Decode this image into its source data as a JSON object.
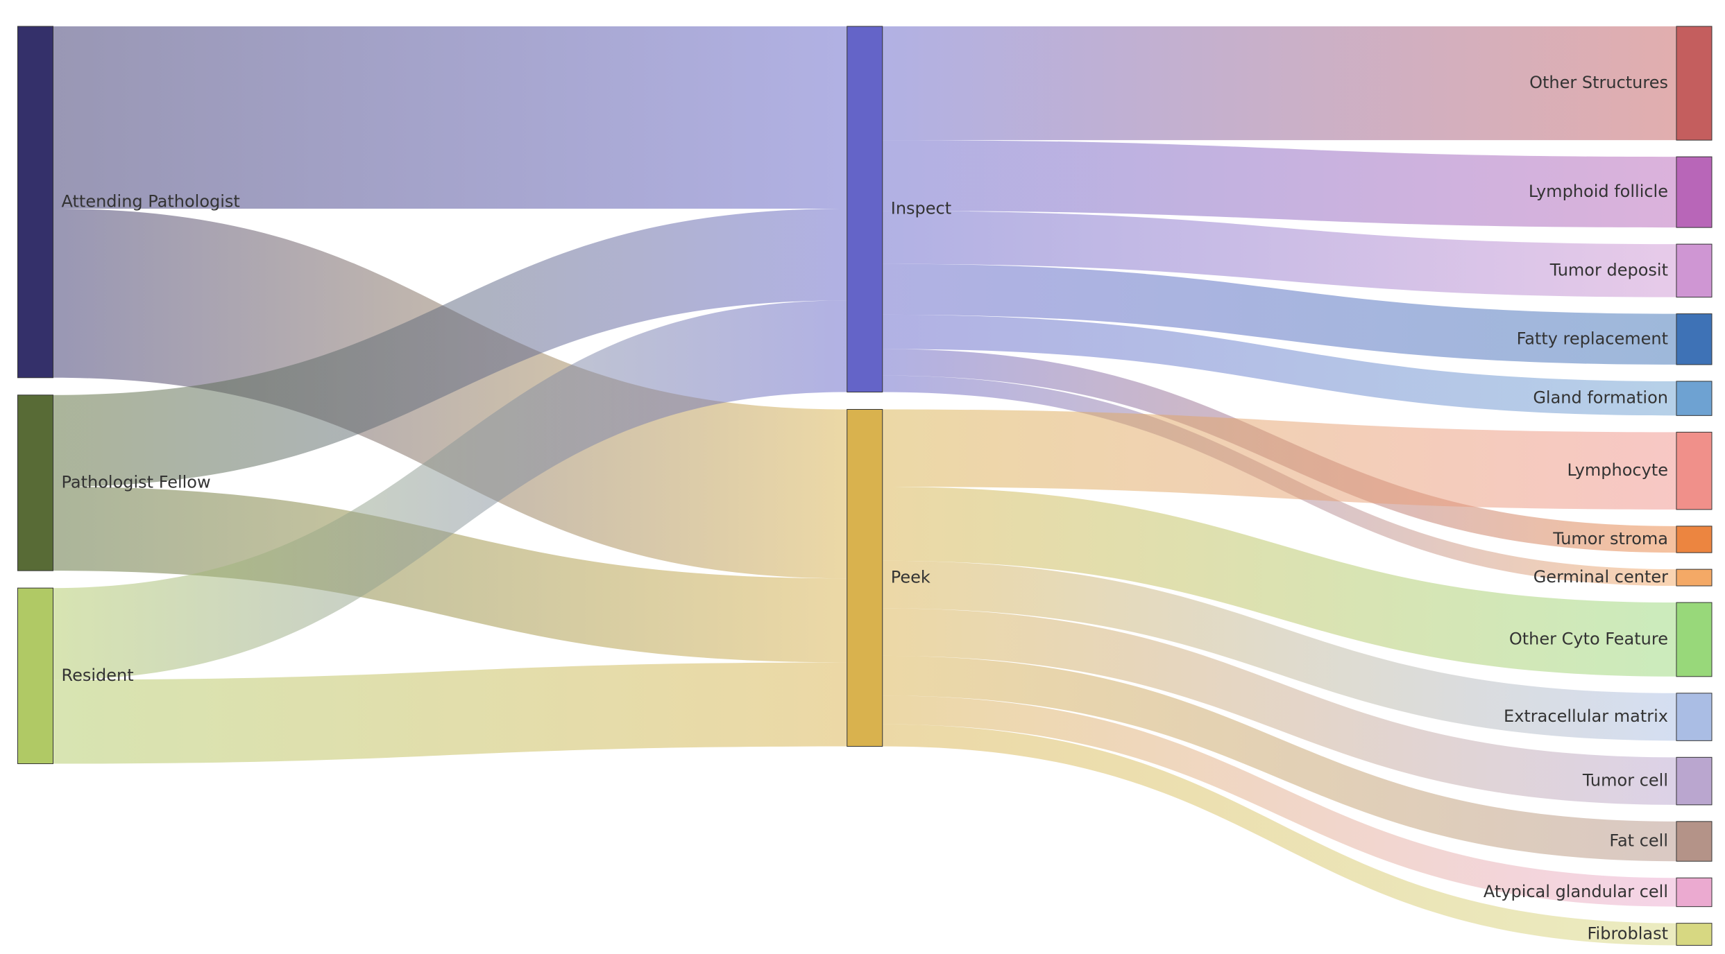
{
  "chart_data": {
    "type": "sankey",
    "nodes": [
      {
        "name": "Attending Pathologist",
        "color": "#34306a"
      },
      {
        "name": "Pathologist Fellow",
        "color": "#586b36"
      },
      {
        "name": "Resident",
        "color": "#b0c965"
      },
      {
        "name": "Inspect",
        "color": "#6464c8"
      },
      {
        "name": "Peek",
        "color": "#d9b24e"
      },
      {
        "name": "Other Structures",
        "color": "#c45e5e"
      },
      {
        "name": "Lymphoid follicle",
        "color": "#b866b8"
      },
      {
        "name": "Tumor deposit",
        "color": "#cf96d3"
      },
      {
        "name": "Fatty replacement",
        "color": "#3e72b6"
      },
      {
        "name": "Gland formation",
        "color": "#6ea2d2"
      },
      {
        "name": "Lymphocyte",
        "color": "#f0908a"
      },
      {
        "name": "Tumor stroma",
        "color": "#ec8540"
      },
      {
        "name": "Germinal center",
        "color": "#f4a966"
      },
      {
        "name": "Other Cyto Feature",
        "color": "#98d87a"
      },
      {
        "name": "Extracellular matrix",
        "color": "#aabde4"
      },
      {
        "name": "Tumor cell",
        "color": "#baa6cf"
      },
      {
        "name": "Fat cell",
        "color": "#b49388"
      },
      {
        "name": "Atypical glandular cell",
        "color": "#ebaad0"
      },
      {
        "name": "Fibroblast",
        "color": "#d7d882"
      }
    ],
    "links": [
      {
        "source": "Attending Pathologist",
        "target": "Inspect",
        "value": 165
      },
      {
        "source": "Attending Pathologist",
        "target": "Peek",
        "value": 153
      },
      {
        "source": "Pathologist Fellow",
        "target": "Inspect",
        "value": 83
      },
      {
        "source": "Pathologist Fellow",
        "target": "Peek",
        "value": 76
      },
      {
        "source": "Resident",
        "target": "Inspect",
        "value": 83
      },
      {
        "source": "Resident",
        "target": "Peek",
        "value": 76
      },
      {
        "source": "Inspect",
        "target": "Other Structures",
        "value": 103
      },
      {
        "source": "Inspect",
        "target": "Lymphoid follicle",
        "value": 64
      },
      {
        "source": "Inspect",
        "target": "Tumor deposit",
        "value": 48
      },
      {
        "source": "Inspect",
        "target": "Fatty replacement",
        "value": 46
      },
      {
        "source": "Inspect",
        "target": "Gland formation",
        "value": 31
      },
      {
        "source": "Inspect",
        "target": "Tumor stroma",
        "value": 24
      },
      {
        "source": "Inspect",
        "target": "Germinal center",
        "value": 15
      },
      {
        "source": "Peek",
        "target": "Lymphocyte",
        "value": 70
      },
      {
        "source": "Peek",
        "target": "Other Cyto Feature",
        "value": 67
      },
      {
        "source": "Peek",
        "target": "Extracellular matrix",
        "value": 43
      },
      {
        "source": "Peek",
        "target": "Tumor cell",
        "value": 43
      },
      {
        "source": "Peek",
        "target": "Fat cell",
        "value": 36
      },
      {
        "source": "Peek",
        "target": "Atypical glandular cell",
        "value": 26
      },
      {
        "source": "Peek",
        "target": "Fibroblast",
        "value": 20
      }
    ]
  }
}
